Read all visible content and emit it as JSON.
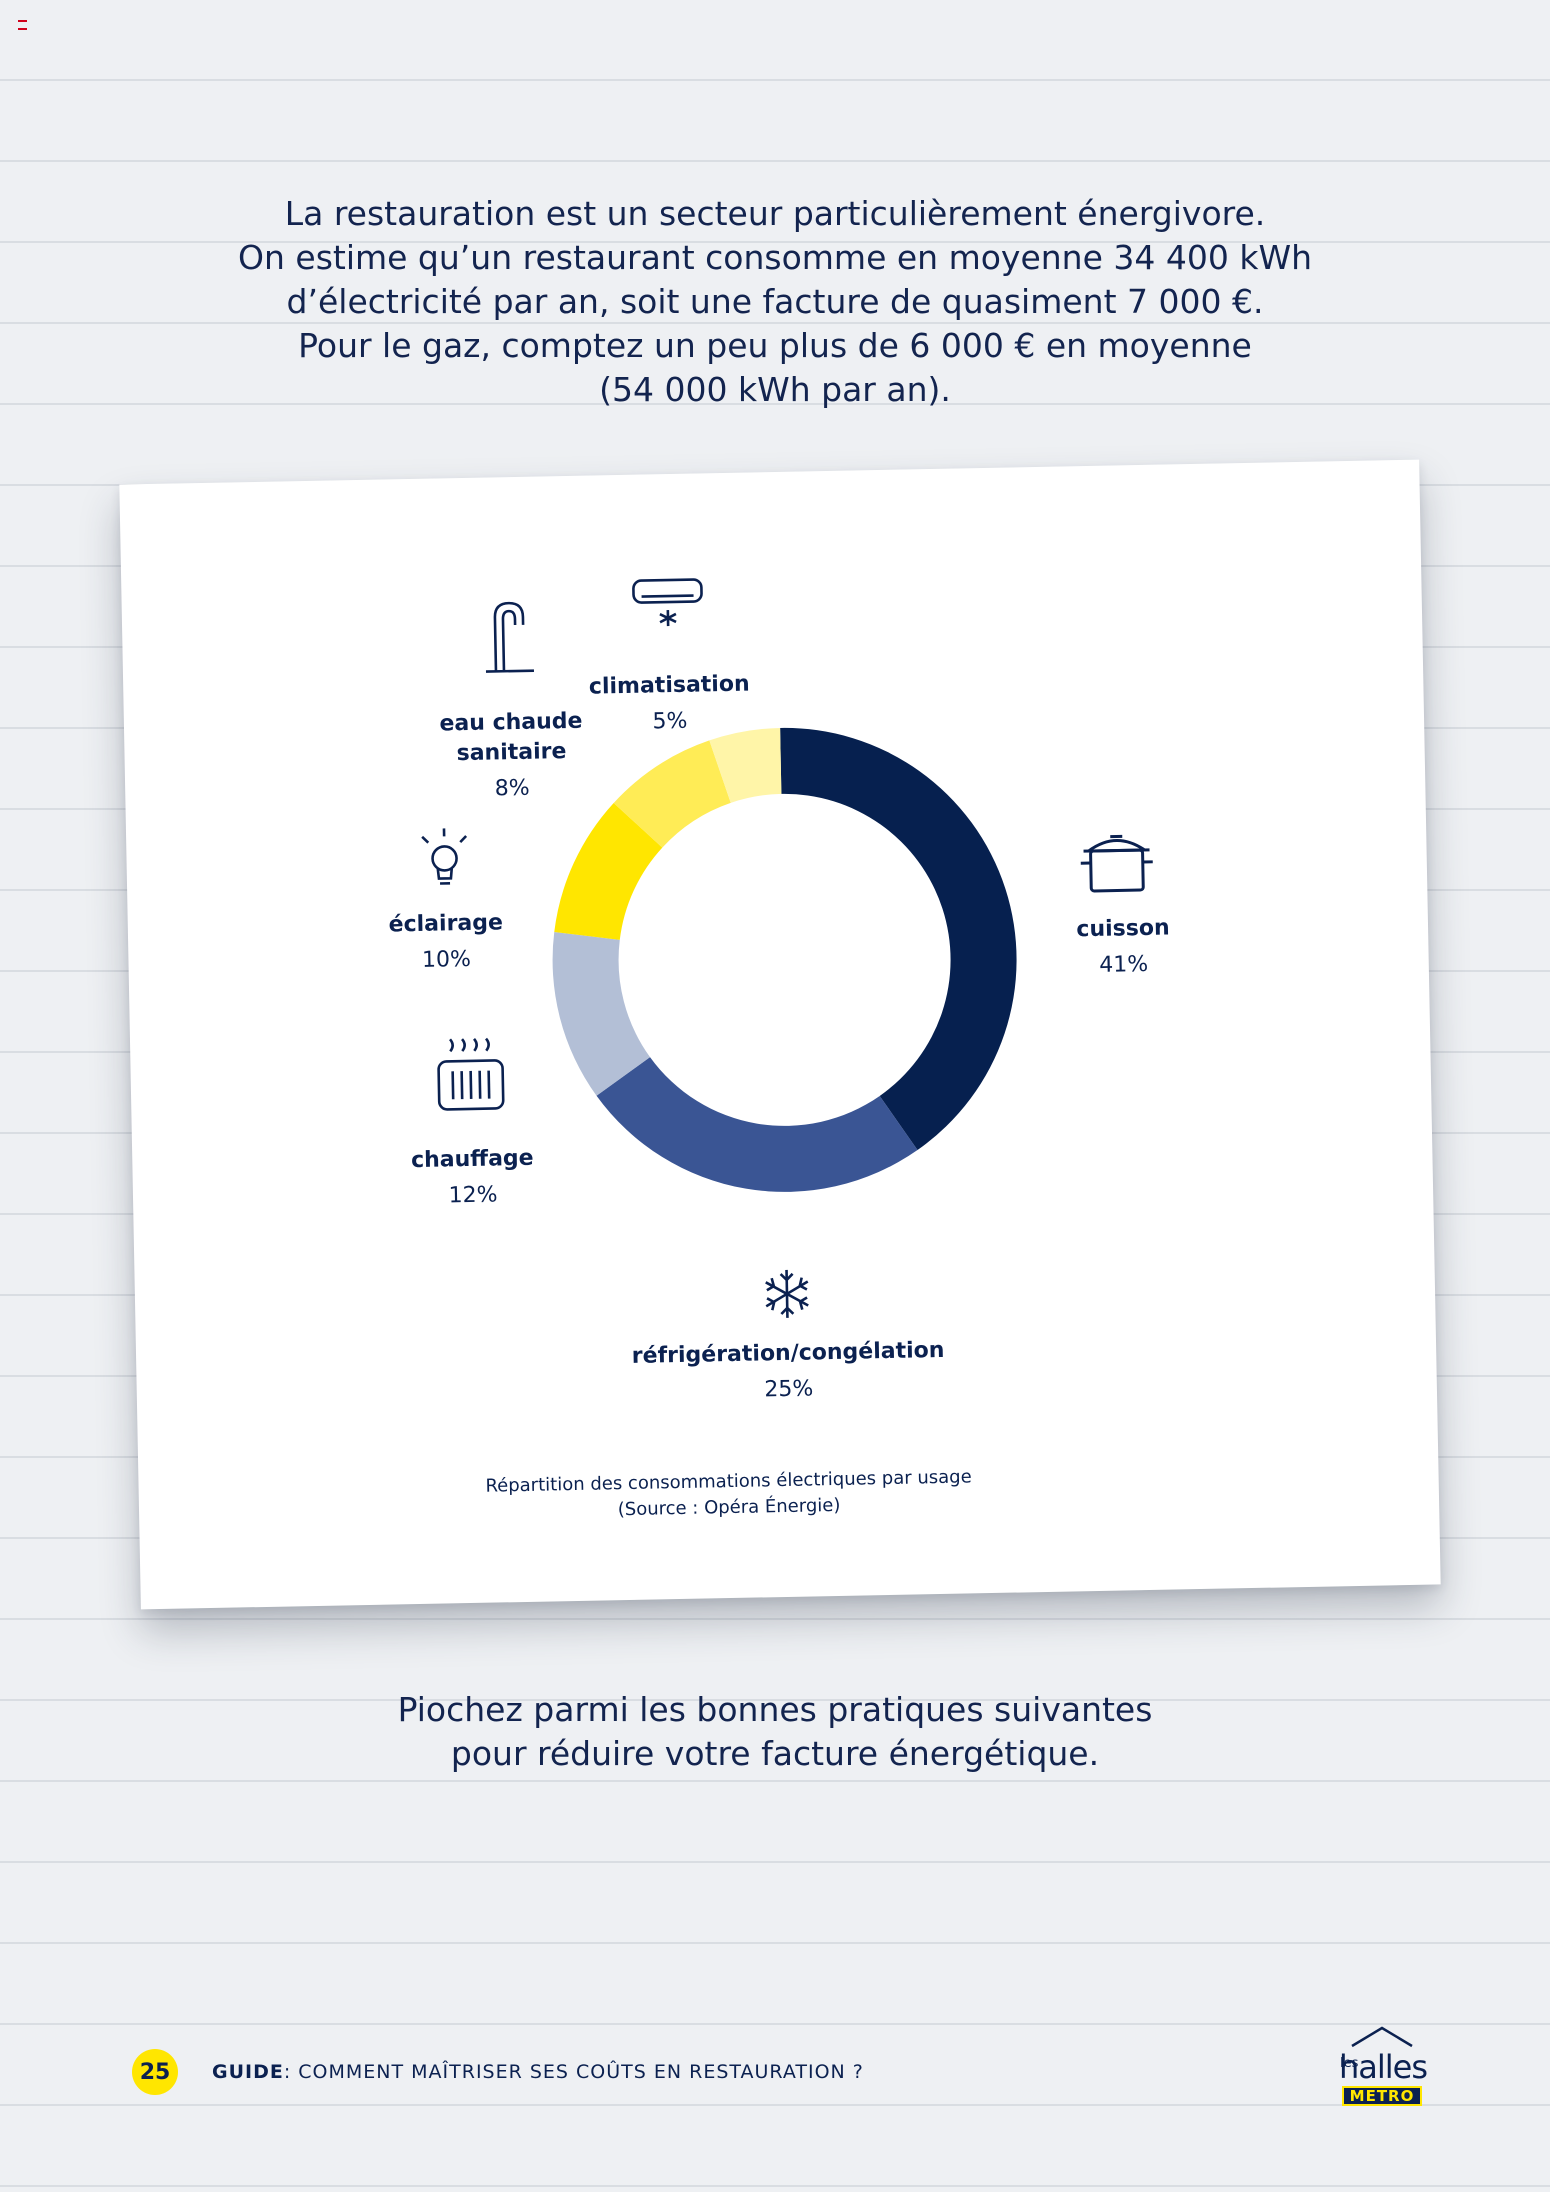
{
  "intro": {
    "lines": [
      "La restauration est un secteur particulièrement énergivore.",
      "On estime qu’un restaurant consomme en moyenne 34 400 kWh",
      "d’électricité par an, soit une facture de quasiment 7 000 €.",
      "Pour le gaz, comptez un peu plus de 6 000 € en moyenne",
      "(54 000 kWh par an)."
    ]
  },
  "chart_data": {
    "type": "pie",
    "variant": "donut",
    "categories": [
      "cuisson",
      "réfrigération/congélation",
      "chauffage",
      "éclairage",
      "eau chaude sanitaire",
      "climatisation"
    ],
    "values": [
      41,
      25,
      12,
      10,
      8,
      5
    ],
    "value_labels": [
      "41%",
      "25%",
      "12%",
      "10%",
      "8%",
      "5%"
    ],
    "label_lines": [
      [
        "cuisson"
      ],
      [
        "réfrigération/congélation"
      ],
      [
        "chauffage"
      ],
      [
        "éclairage"
      ],
      [
        "eau chaude",
        "sanitaire"
      ],
      [
        "climatisation"
      ]
    ],
    "icons": [
      "cooking-pot-icon",
      "snowflake-icon",
      "radiator-icon",
      "light-bulb-icon",
      "faucet-icon",
      "air-conditioner-icon"
    ],
    "colors": [
      "#06204f",
      "#3a5594",
      "#b3bfd6",
      "#ffe600",
      "#ffec56",
      "#fff5a8"
    ],
    "caption": [
      "Répartition des consommations électriques par usage",
      "(Source : Opéra Énergie)"
    ]
  },
  "outro": {
    "lines": [
      "Piochez parmi les bonnes pratiques suivantes",
      "pour réduire votre facture énergétique."
    ]
  },
  "footer": {
    "page_number": "25",
    "guide_label": "GUIDE",
    "guide_title": ": COMMENT MAÎTRISER SES COÛTS EN RESTAURATION ?"
  },
  "logo": {
    "les": "les",
    "word": "halles",
    "metro": "METRO"
  },
  "colors": {
    "text": "#13244f",
    "navy": "#0b2150",
    "yellow": "#ffe600"
  }
}
